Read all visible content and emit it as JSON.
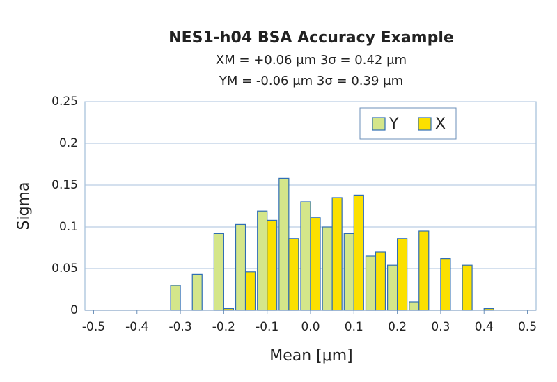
{
  "chart_data": {
    "type": "bar",
    "title": "NES1-h04 BSA Accuracy Example",
    "subtitle": [
      "XM = +0.06 μm 3σ = 0.42 μm",
      "YM = -0.06 μm 3σ = 0.39 μm"
    ],
    "x_label": "Mean [μm]",
    "y_label": "Sigma",
    "x": [
      -0.5,
      -0.45,
      -0.4,
      -0.35,
      -0.3,
      -0.25,
      -0.2,
      -0.15,
      -0.1,
      -0.05,
      0,
      0.05,
      0.1,
      0.15,
      0.2,
      0.25,
      0.3,
      0.35,
      0.4,
      0.45,
      0.5
    ],
    "series": [
      {
        "name": "Y",
        "color": "#d4e68a",
        "values": [
          0,
          0,
          0,
          0,
          0.03,
          0.043,
          0.092,
          0.103,
          0.119,
          0.158,
          0.13,
          0.1,
          0.092,
          0.065,
          0.054,
          0.01,
          0,
          0,
          0,
          0,
          0
        ]
      },
      {
        "name": "X",
        "color": "#fbe000",
        "values": [
          0,
          0,
          0,
          0,
          0,
          0,
          0.002,
          0.046,
          0.108,
          0.086,
          0.111,
          0.135,
          0.138,
          0.07,
          0.086,
          0.095,
          0.062,
          0.054,
          0.002,
          0,
          0
        ]
      }
    ],
    "xlim": [
      -0.52,
      0.52
    ],
    "xticks": [
      -0.5,
      -0.4,
      -0.3,
      -0.2,
      -0.1,
      {
        "value": 0,
        "label": "0.0"
      },
      0.1,
      0.2,
      0.3,
      0.4,
      0.5
    ],
    "ylim": [
      0,
      0.25
    ],
    "yticks": [
      0,
      0.05,
      0.1,
      0.15,
      0.2,
      0.25
    ],
    "grid": true,
    "legend": "top-right",
    "bar_edge_color": "#2f6db3"
  }
}
